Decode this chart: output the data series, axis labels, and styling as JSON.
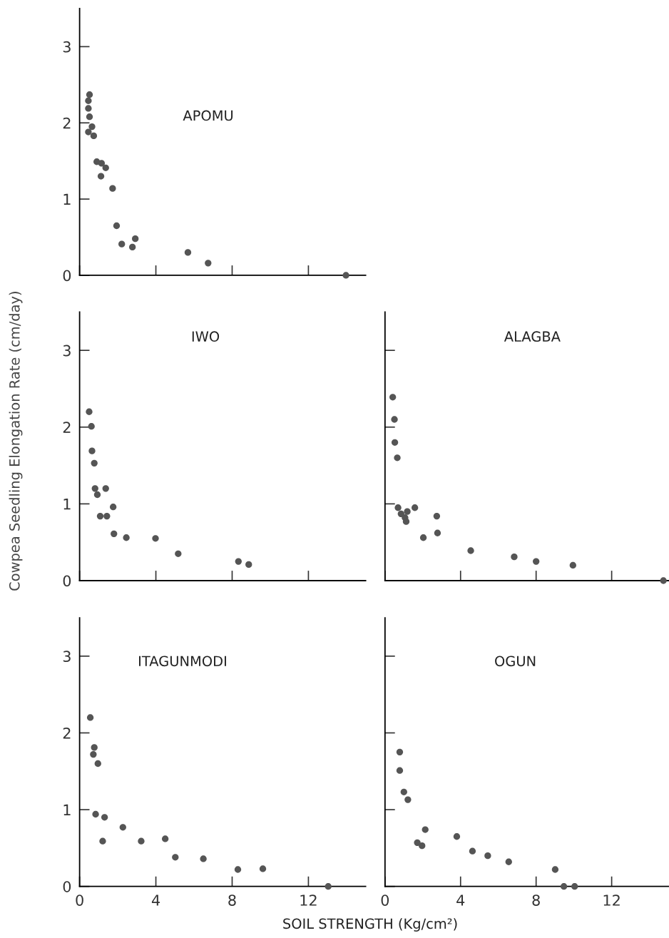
{
  "chart_data": [
    {
      "type": "scatter",
      "title": "APOMU",
      "xlim": [
        0,
        15
      ],
      "ylim": [
        0,
        3.5
      ],
      "xticks": [
        0,
        4,
        8,
        12
      ],
      "yticks": [
        0,
        1,
        2,
        3
      ],
      "tick_labels": "y",
      "marker": "circle",
      "grid": false,
      "series": [
        {
          "color": "#555555",
          "x": [
            0.52,
            0.46,
            0.46,
            0.52,
            0.65,
            0.46,
            0.74,
            0.9,
            1.15,
            1.37,
            1.12,
            1.73,
            1.94,
            2.21,
            2.77,
            2.92,
            5.68,
            6.74,
            13.97
          ],
          "values": [
            2.37,
            2.29,
            2.19,
            2.08,
            1.95,
            1.88,
            1.83,
            1.49,
            1.47,
            1.41,
            1.3,
            1.14,
            0.65,
            0.41,
            0.37,
            0.48,
            0.3,
            0.16,
            0
          ]
        }
      ]
    },
    {
      "type": "scatter",
      "title": "IWO",
      "ylabel": "Cowpea Seedling Elongation Rate (cm/day)",
      "xlim": [
        0,
        15
      ],
      "ylim": [
        0,
        3.5
      ],
      "xticks": [
        0,
        4,
        8,
        12
      ],
      "yticks": [
        0,
        1,
        2,
        3
      ],
      "tick_labels": "y",
      "marker": "circle",
      "grid": false,
      "series": [
        {
          "color": "#555555",
          "x": [
            0.5,
            0.62,
            0.65,
            0.77,
            0.81,
            0.93,
            1.37,
            1.76,
            1.08,
            1.43,
            1.8,
            2.45,
            3.98,
            5.17,
            8.33,
            8.87
          ],
          "values": [
            2.2,
            2.01,
            1.69,
            1.53,
            1.2,
            1.12,
            1.2,
            0.96,
            0.84,
            0.84,
            0.61,
            0.56,
            0.55,
            0.35,
            0.25,
            0.21
          ]
        }
      ]
    },
    {
      "type": "scatter",
      "title": "ALAGBA",
      "xlim": [
        0,
        15
      ],
      "ylim": [
        0,
        3.5
      ],
      "xticks": [
        0,
        4,
        8,
        12
      ],
      "yticks": [
        0,
        1,
        2,
        3
      ],
      "tick_labels": false,
      "marker": "circle",
      "grid": false,
      "series": [
        {
          "color": "#555555",
          "x": [
            0.41,
            0.5,
            0.52,
            0.65,
            0.69,
            0.85,
            1.18,
            1.06,
            1.12,
            1.58,
            2.74,
            2.03,
            2.78,
            4.54,
            6.84,
            8.0,
            9.95,
            14.74
          ],
          "values": [
            2.39,
            2.1,
            1.8,
            1.6,
            0.95,
            0.87,
            0.9,
            0.82,
            0.77,
            0.95,
            0.84,
            0.56,
            0.62,
            0.39,
            0.31,
            0.25,
            0.2,
            0
          ]
        }
      ]
    },
    {
      "type": "scatter",
      "title": "ITAGUNMODI",
      "xlabel": "SOIL STRENGTH (Kg/cm²)",
      "xlim": [
        0,
        15
      ],
      "ylim": [
        0,
        3.5
      ],
      "xticks": [
        0,
        4,
        8,
        12
      ],
      "yticks": [
        0,
        1,
        2,
        3
      ],
      "marker": "circle",
      "grid": false,
      "series": [
        {
          "color": "#555555",
          "x": [
            0.56,
            0.77,
            0.72,
            0.96,
            0.84,
            1.31,
            1.21,
            2.27,
            3.23,
            4.49,
            5.02,
            6.49,
            8.3,
            9.61,
            13.04
          ],
          "values": [
            2.2,
            1.81,
            1.72,
            1.6,
            0.94,
            0.9,
            0.59,
            0.77,
            0.59,
            0.62,
            0.38,
            0.36,
            0.22,
            0.23,
            0
          ]
        }
      ]
    },
    {
      "type": "scatter",
      "title": "OGUN",
      "xlim": [
        0,
        15
      ],
      "ylim": [
        0,
        3.5
      ],
      "xticks": [
        0,
        4,
        8,
        12
      ],
      "yticks": [
        0,
        1,
        2,
        3
      ],
      "tick_labels": "x",
      "marker": "circle",
      "grid": false,
      "series": [
        {
          "color": "#555555",
          "x": [
            0.78,
            0.78,
            1.0,
            1.21,
            2.13,
            1.71,
            1.96,
            3.8,
            4.63,
            5.44,
            6.55,
            9.01,
            9.47,
            10.04
          ],
          "values": [
            1.75,
            1.51,
            1.23,
            1.13,
            0.74,
            0.57,
            0.53,
            0.65,
            0.46,
            0.4,
            0.32,
            0.22,
            0,
            0
          ]
        }
      ]
    }
  ]
}
